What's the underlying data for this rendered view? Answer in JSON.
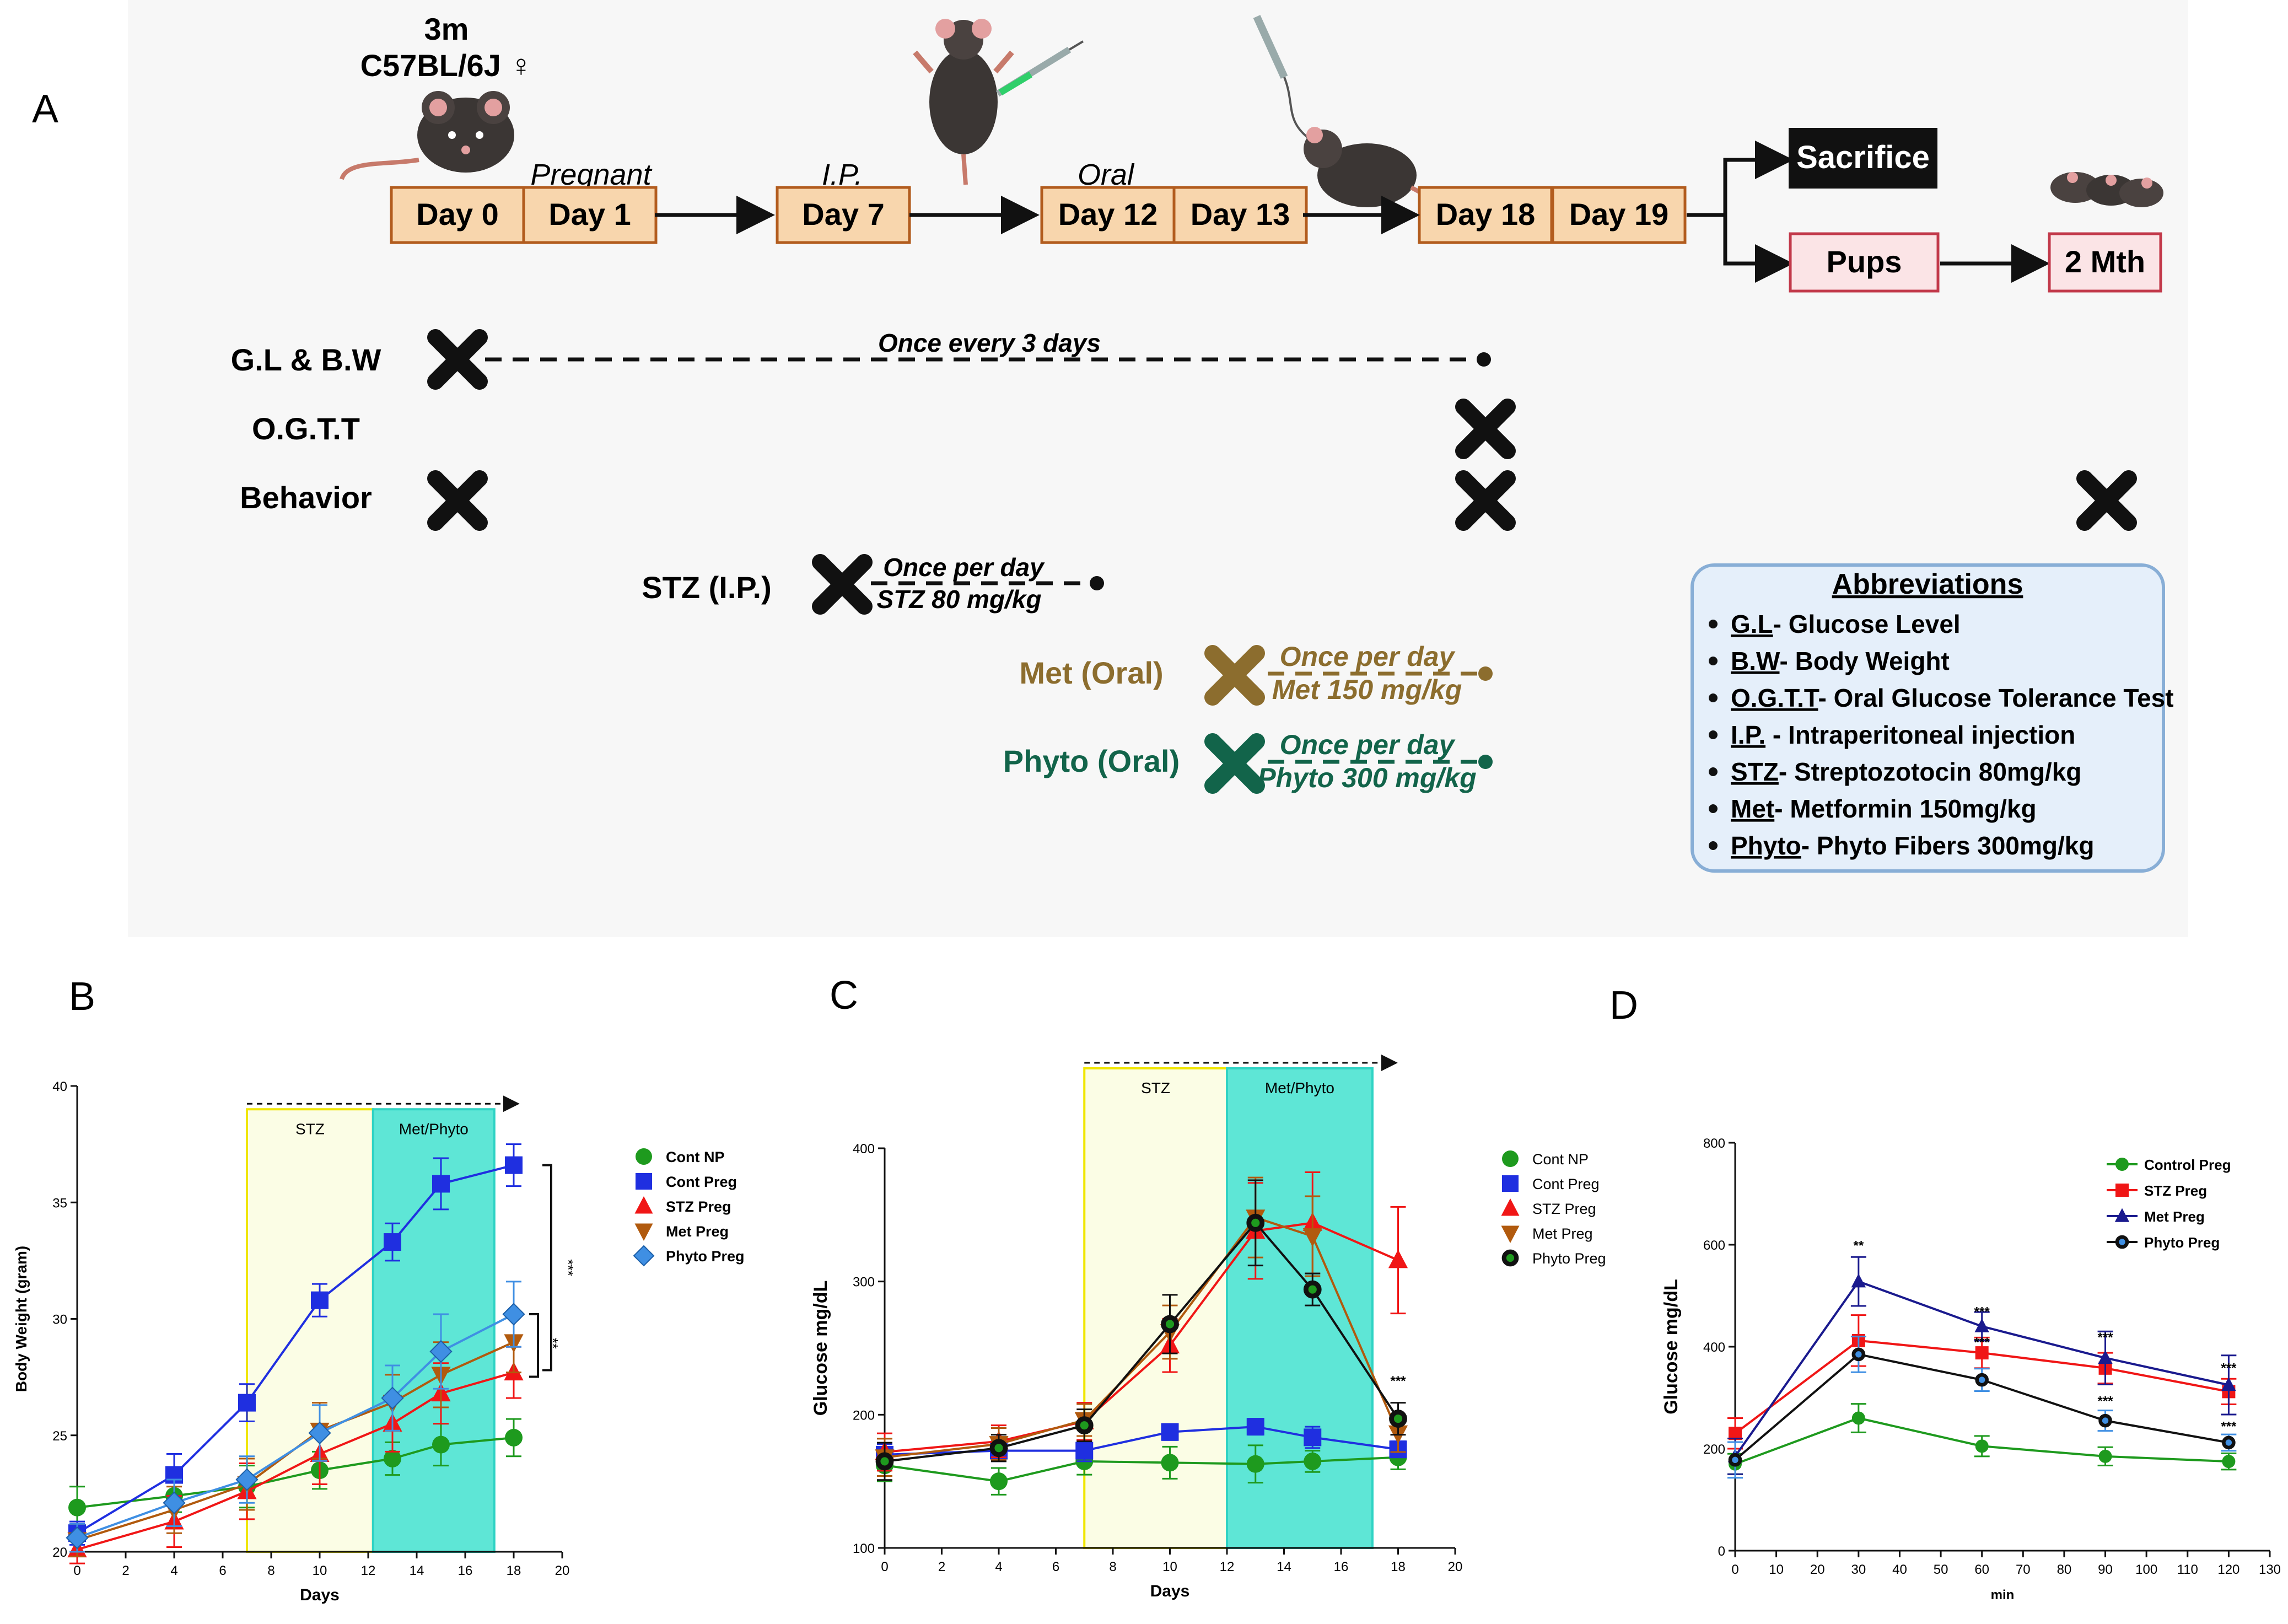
{
  "panel_labels": {
    "a": "A",
    "b": "B",
    "c": "C",
    "d": "D"
  },
  "colors": {
    "panel_bg": "#f7f7f7",
    "box_fill": "#f8d6ad",
    "box_stroke": "#b25c1e",
    "sacrifice_fill": "#111111",
    "pups_fill": "#fbe4e6",
    "pups_stroke": "#c2394a",
    "met": "#8c6d2e",
    "phyto": "#12644a",
    "abbr_fill": "#e5effa",
    "abbr_stroke": "#88aed6",
    "stz_zone": "#fbfde5",
    "stz_border": "#f0e600",
    "met_zone": "#5ee6d6",
    "met_border": "#2fd3c4",
    "green": "#1e9a1e",
    "blue": "#1f2fe0",
    "red": "#f01616",
    "brown": "#b15a0e",
    "diamond": "#3f8fe3",
    "navy": "#1a1a8e"
  },
  "timeline": {
    "strain_top": "3m",
    "strain_bottom": "C57BL/6J ♀",
    "days": [
      "Day 0",
      "Day 1",
      "Day 7",
      "Day 12",
      "Day 13",
      "Day 18",
      "Day 19"
    ],
    "notes": {
      "pregnant": "Pregnant",
      "ip": "I.P.",
      "oral": "Oral"
    },
    "sacrifice": "Sacrifice",
    "pups": "Pups",
    "two_months": "2 Mth"
  },
  "schedule": {
    "gl_bw": {
      "label": "G.L & B.W",
      "note": "Once every 3 days"
    },
    "ogtt": {
      "label": "O.G.T.T"
    },
    "behavior": {
      "label": "Behavior"
    },
    "stz": {
      "label": "STZ (I.P.)",
      "line1": "Once per day",
      "line2": "STZ 80 mg/kg"
    },
    "met": {
      "label": "Met (Oral)",
      "line1": "Once per day",
      "line2": "Met 150 mg/kg"
    },
    "phyto": {
      "label": "Phyto (Oral)",
      "line1": "Once per day",
      "line2": "Phyto 300 mg/kg"
    }
  },
  "abbreviations": {
    "title": "Abbreviations",
    "items": [
      {
        "term": "G.L",
        "def": "- Glucose Level"
      },
      {
        "term": "B.W",
        "def": "- Body Weight"
      },
      {
        "term": "O.G.T.T",
        "def": "- Oral Glucose Tolerance Test"
      },
      {
        "term": "I.P.",
        "def": " - Intraperitoneal injection"
      },
      {
        "term": "STZ",
        "def": "- Streptozotocin 80mg/kg"
      },
      {
        "term": "Met",
        "def": "- Metformin 150mg/kg"
      },
      {
        "term": "Phyto",
        "def": "- Phyto Fibers 300mg/kg"
      }
    ]
  },
  "chart_data": [
    {
      "id": "B",
      "type": "line",
      "xlabel": "Days",
      "ylabel": "Body Weight (gram)",
      "xlim": [
        0,
        20
      ],
      "ylim": [
        20,
        40
      ],
      "xticks": [
        0,
        2,
        4,
        6,
        8,
        10,
        12,
        14,
        16,
        18,
        20
      ],
      "yticks": [
        20,
        25,
        30,
        35,
        40
      ],
      "zones": [
        {
          "label": "STZ",
          "x0": 7,
          "x1": 12.2,
          "kind": "stz"
        },
        {
          "label": "Met/Phyto",
          "x0": 12.2,
          "x1": 17.2,
          "kind": "met"
        }
      ],
      "series": [
        {
          "name": "Cont NP",
          "color": "green",
          "marker": "circle",
          "x": [
            0,
            4,
            7,
            10,
            13,
            15,
            18
          ],
          "values": [
            21.9,
            22.4,
            22.8,
            23.5,
            24.0,
            24.6,
            24.9
          ],
          "err": [
            0.9,
            0.7,
            0.9,
            0.8,
            0.7,
            0.9,
            0.8
          ]
        },
        {
          "name": "Cont Preg",
          "color": "blue",
          "marker": "square",
          "x": [
            0,
            4,
            7,
            10,
            13,
            15,
            18
          ],
          "values": [
            20.8,
            23.3,
            26.4,
            30.8,
            33.3,
            35.8,
            36.6
          ],
          "err": [
            0.5,
            0.9,
            0.8,
            0.7,
            0.8,
            1.1,
            0.9
          ]
        },
        {
          "name": "STZ Preg",
          "color": "red",
          "marker": "triangle",
          "x": [
            0,
            4,
            7,
            10,
            13,
            15,
            18
          ],
          "values": [
            20.1,
            21.3,
            22.6,
            24.2,
            25.5,
            26.8,
            27.7
          ],
          "err": [
            0.6,
            1.1,
            1.2,
            1.3,
            1.2,
            1.3,
            1.1
          ]
        },
        {
          "name": "Met Preg",
          "color": "brown",
          "marker": "triangle-down",
          "x": [
            0,
            4,
            7,
            10,
            13,
            15,
            18
          ],
          "values": [
            20.5,
            21.8,
            22.9,
            25.2,
            26.4,
            27.6,
            29.0
          ],
          "err": [
            0.7,
            1.0,
            1.1,
            1.2,
            1.2,
            1.4,
            1.3
          ]
        },
        {
          "name": "Phyto Preg",
          "color": "diamond",
          "marker": "diamond",
          "x": [
            0,
            4,
            7,
            10,
            13,
            15,
            18
          ],
          "values": [
            20.6,
            22.1,
            23.1,
            25.1,
            26.6,
            28.6,
            30.2
          ],
          "err": [
            0.6,
            1.0,
            1.0,
            1.2,
            1.4,
            1.6,
            1.4
          ]
        }
      ],
      "significance": [
        "***",
        "**"
      ]
    },
    {
      "id": "C",
      "type": "line",
      "xlabel": "Days",
      "ylabel": "Glucose mg/dL",
      "xlim": [
        0,
        20
      ],
      "ylim": [
        100,
        400
      ],
      "xticks": [
        0,
        2,
        4,
        6,
        8,
        10,
        12,
        14,
        16,
        18,
        20
      ],
      "yticks": [
        100,
        200,
        300,
        400
      ],
      "zones": [
        {
          "label": "STZ",
          "x0": 7,
          "x1": 12,
          "kind": "stz"
        },
        {
          "label": "Met/Phyto",
          "x0": 12,
          "x1": 17.1,
          "kind": "met"
        }
      ],
      "series": [
        {
          "name": "Cont NP",
          "color": "green",
          "marker": "circle",
          "x": [
            0,
            4,
            7,
            10,
            13,
            15,
            18
          ],
          "values": [
            162,
            150,
            165,
            164,
            163,
            165,
            168
          ],
          "err": [
            12,
            10,
            10,
            12,
            14,
            8,
            9
          ]
        },
        {
          "name": "Cont Preg",
          "color": "blue",
          "marker": "square",
          "x": [
            0,
            4,
            7,
            10,
            13,
            15,
            18
          ],
          "values": [
            170,
            173,
            173,
            187,
            191,
            183,
            174
          ],
          "err": [
            8,
            8,
            8,
            6,
            6,
            8,
            6
          ]
        },
        {
          "name": "STZ Preg",
          "color": "red",
          "marker": "triangle",
          "x": [
            0,
            4,
            7,
            10,
            13,
            15,
            18
          ],
          "values": [
            172,
            180,
            195,
            252,
            338,
            344,
            316
          ],
          "err": [
            14,
            12,
            14,
            20,
            36,
            38,
            40
          ]
        },
        {
          "name": "Met Preg",
          "color": "brown",
          "marker": "triangle-down",
          "x": [
            0,
            4,
            7,
            10,
            13,
            15,
            18
          ],
          "values": [
            168,
            178,
            196,
            262,
            348,
            334,
            186
          ],
          "err": [
            14,
            12,
            12,
            20,
            30,
            30,
            14
          ]
        },
        {
          "name": "Phyto Preg",
          "color": "green",
          "marker": "ring",
          "x": [
            0,
            4,
            7,
            10,
            13,
            15,
            18
          ],
          "values": [
            165,
            175,
            192,
            268,
            344,
            294,
            197
          ],
          "err": [
            14,
            10,
            12,
            22,
            32,
            12,
            12
          ]
        }
      ],
      "significance": [
        "***"
      ]
    },
    {
      "id": "D",
      "type": "line",
      "xlabel": "min",
      "ylabel": "Glucose mg/dL",
      "xlim": [
        0,
        130
      ],
      "ylim": [
        0,
        800
      ],
      "xticks": [
        0,
        10,
        20,
        30,
        40,
        50,
        60,
        70,
        80,
        90,
        100,
        110,
        120,
        130
      ],
      "yticks": [
        0,
        200,
        400,
        600,
        800
      ],
      "series": [
        {
          "name": "Control Preg",
          "color": "green",
          "marker": "circle",
          "x": [
            0,
            30,
            60,
            90,
            120
          ],
          "values": [
            170,
            260,
            205,
            185,
            175
          ],
          "err": [
            20,
            28,
            20,
            18,
            16
          ]
        },
        {
          "name": "STZ Preg",
          "color": "red",
          "marker": "square",
          "x": [
            0,
            30,
            60,
            90,
            120
          ],
          "values": [
            230,
            412,
            388,
            358,
            312
          ],
          "err": [
            30,
            50,
            30,
            30,
            25
          ]
        },
        {
          "name": "Met Preg",
          "color": "navy",
          "marker": "triangle",
          "x": [
            0,
            30,
            60,
            90,
            120
          ],
          "values": [
            185,
            528,
            440,
            378,
            325
          ],
          "err": [
            35,
            48,
            28,
            52,
            58
          ]
        },
        {
          "name": "Phyto Preg",
          "color": "diamond",
          "marker": "ring",
          "x": [
            0,
            30,
            60,
            90,
            120
          ],
          "values": [
            178,
            385,
            335,
            255,
            212
          ],
          "err": [
            35,
            35,
            22,
            20,
            16
          ]
        }
      ],
      "significance_labels": [
        {
          "x": 30,
          "label": "**"
        },
        {
          "x": 60,
          "label": "***"
        },
        {
          "x": 90,
          "label": "***"
        },
        {
          "x": 120,
          "label": "***"
        },
        {
          "x": 60,
          "label": "***"
        },
        {
          "x": 90,
          "label": "***"
        },
        {
          "x": 120,
          "label": "***"
        }
      ]
    }
  ]
}
